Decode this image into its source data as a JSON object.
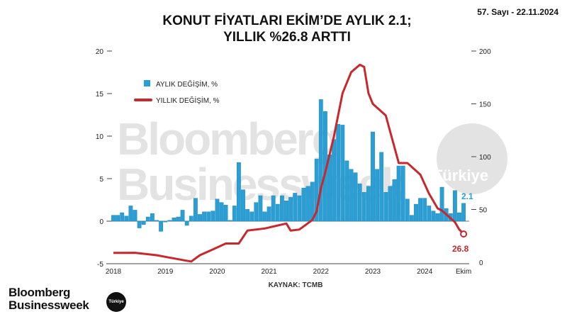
{
  "header": {
    "title_line1": "KONUT FİYATLARI EKİM’DE AYLIK 2.1;",
    "title_line2": "YILLIK %26.8 ARTTI",
    "issue": "57. Sayı - 22.11.2024"
  },
  "watermark": {
    "line1": "Bloomberg",
    "line2": "Businessweek",
    "badge": "Türkiye"
  },
  "footer": {
    "source": "KAYNAK: TCMB",
    "logo_line1": "Bloomberg",
    "logo_line2": "Businessweek",
    "logo_badge": "Türkiye"
  },
  "colors": {
    "bars": "#2a9fd6",
    "line": "#c8282d",
    "watermark": "#e3e3e3"
  },
  "chart_data": {
    "type": "bar+line",
    "x_ticks": [
      "2018",
      "2019",
      "2020",
      "2021",
      "2022",
      "2023",
      "2024",
      "Ekim"
    ],
    "left_axis": {
      "ylim": [
        -5,
        20
      ],
      "ticks": [
        -5,
        0,
        5,
        10,
        15,
        20
      ]
    },
    "right_axis": {
      "ylim": [
        0,
        200
      ],
      "ticks": [
        0,
        50,
        100,
        150,
        200
      ]
    },
    "legend": {
      "placement": "top-left"
    },
    "series": [
      {
        "name": "AYLIK DEĞİŞİM, %",
        "type": "bar",
        "axis": "left",
        "start_month": "2018-01",
        "values": [
          0.7,
          0.7,
          1.0,
          0.6,
          1.8,
          1.3,
          -0.8,
          -0.4,
          0.5,
          0.9,
          0.1,
          -1.2,
          -0.1,
          0.1,
          0.4,
          0.5,
          1.3,
          -0.5,
          0.6,
          2.7,
          0.8,
          1.1,
          1.1,
          1.2,
          2.6,
          2.2,
          1.9,
          0.1,
          1.8,
          6.9,
          3.7,
          1.4,
          1.1,
          2.2,
          3.0,
          1.1,
          1.7,
          3.0,
          2.0,
          3.0,
          2.4,
          2.8,
          3.3,
          3.0,
          3.9,
          4.1,
          4.6,
          7.3,
          14.3,
          12.9,
          7.8,
          9.6,
          11.4,
          11.3,
          7.1,
          6.1,
          5.7,
          4.4,
          3.4,
          4.1,
          10.5,
          6.1,
          8.1,
          3.4,
          4.1,
          4.9,
          6.5,
          6.5,
          2.6,
          0.7,
          2.0,
          2.7,
          2.7,
          1.8,
          1.2,
          0.9,
          4.0,
          1.5,
          0.9,
          3.6,
          1.0,
          2.1
        ],
        "end_label": "2.1"
      },
      {
        "name": "YILLIK DEĞİŞİM, %",
        "type": "line",
        "axis": "right",
        "points": [
          {
            "m": "2018-01",
            "v": 8.9
          },
          {
            "m": "2018-06",
            "v": 9
          },
          {
            "m": "2018-11",
            "v": 6.7
          },
          {
            "m": "2019-02",
            "v": 4.4
          },
          {
            "m": "2019-07",
            "v": 0.7
          },
          {
            "m": "2019-09",
            "v": 6.7
          },
          {
            "m": "2019-12",
            "v": 12.2
          },
          {
            "m": "2020-03",
            "v": 17.8
          },
          {
            "m": "2020-06",
            "v": 17.8
          },
          {
            "m": "2020-08",
            "v": 30
          },
          {
            "m": "2020-12",
            "v": 32
          },
          {
            "m": "2021-05",
            "v": 36.7
          },
          {
            "m": "2021-06",
            "v": 30
          },
          {
            "m": "2021-08",
            "v": 31
          },
          {
            "m": "2021-11",
            "v": 40
          },
          {
            "m": "2021-12",
            "v": 48
          },
          {
            "m": "2022-01",
            "v": 70
          },
          {
            "m": "2022-02",
            "v": 85
          },
          {
            "m": "2022-04",
            "v": 119
          },
          {
            "m": "2022-06",
            "v": 160
          },
          {
            "m": "2022-08",
            "v": 180
          },
          {
            "m": "2022-10",
            "v": 187
          },
          {
            "m": "2022-11",
            "v": 185
          },
          {
            "m": "2022-12",
            "v": 160
          },
          {
            "m": "2023-01",
            "v": 150
          },
          {
            "m": "2023-04",
            "v": 139
          },
          {
            "m": "2023-07",
            "v": 94
          },
          {
            "m": "2023-09",
            "v": 94
          },
          {
            "m": "2023-12",
            "v": 83
          },
          {
            "m": "2024-02",
            "v": 65
          },
          {
            "m": "2024-04",
            "v": 51
          },
          {
            "m": "2024-05",
            "v": 49
          },
          {
            "m": "2024-08",
            "v": 38
          },
          {
            "m": "2024-09",
            "v": 31
          },
          {
            "m": "2024-10",
            "v": 26.8
          }
        ],
        "end_label": "26.8"
      }
    ]
  }
}
